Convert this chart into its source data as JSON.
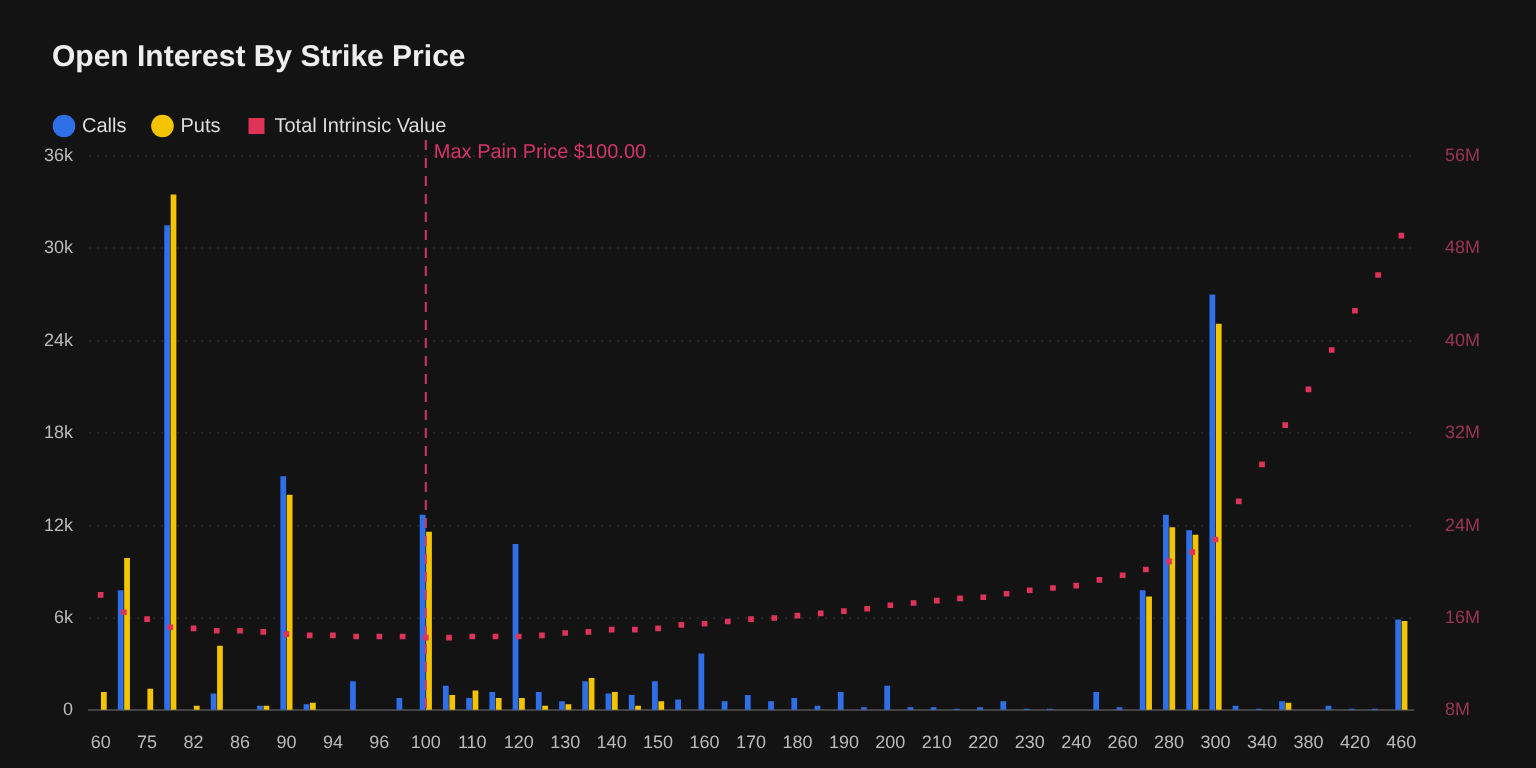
{
  "chart_data": {
    "type": "bar",
    "title": "Open Interest By Strike Price",
    "categories": [
      "60",
      null,
      "75",
      null,
      "82",
      null,
      "86",
      null,
      "90",
      null,
      "94",
      null,
      "96",
      null,
      "100",
      null,
      "110",
      null,
      "120",
      null,
      "130",
      null,
      "140",
      null,
      "150",
      null,
      "160",
      null,
      "170",
      null,
      "180",
      null,
      "190",
      null,
      "200",
      null,
      "210",
      null,
      "220",
      null,
      "230",
      null,
      "240",
      null,
      "260",
      null,
      "280",
      null,
      "300",
      null,
      "340",
      null,
      "380",
      null,
      "420",
      null,
      "460"
    ],
    "series": [
      {
        "name": "Calls",
        "color": "#2f6fe8",
        "values": [
          0,
          7800,
          0,
          31500,
          0,
          1100,
          0,
          300,
          15200,
          400,
          0,
          1900,
          0,
          800,
          12700,
          1600,
          800,
          1200,
          10800,
          1200,
          600,
          1900,
          1100,
          1000,
          1900,
          700,
          3700,
          600,
          1000,
          600,
          800,
          300,
          1200,
          200,
          1600,
          200,
          200,
          100,
          200,
          600,
          100,
          100,
          0,
          1200,
          200,
          7800,
          12700,
          11700,
          27000,
          300,
          100,
          600,
          0,
          300,
          100,
          100,
          5900
        ]
      },
      {
        "name": "Puts",
        "color": "#f5c400",
        "values": [
          1200,
          9900,
          1400,
          33500,
          300,
          4200,
          0,
          300,
          14000,
          500,
          0,
          0,
          0,
          0,
          11600,
          1000,
          1300,
          800,
          800,
          300,
          400,
          2100,
          1200,
          300,
          600,
          0,
          0,
          0,
          0,
          0,
          0,
          0,
          0,
          0,
          0,
          0,
          0,
          0,
          0,
          0,
          0,
          0,
          0,
          0,
          0,
          7400,
          11900,
          11400,
          25100,
          0,
          0,
          500,
          0,
          0,
          0,
          0,
          5800
        ]
      },
      {
        "name": "Total Intrinsic Value",
        "type": "scatter",
        "axis": "y2",
        "marker": "square",
        "color": "#e0335a",
        "values": [
          18000000,
          16500000,
          15900000,
          15200000,
          15100000,
          14900000,
          14900000,
          14800000,
          14600000,
          14500000,
          14500000,
          14400000,
          14400000,
          14400000,
          14300000,
          14300000,
          14400000,
          14400000,
          14400000,
          14500000,
          14700000,
          14800000,
          15000000,
          15000000,
          15100000,
          15400000,
          15500000,
          15700000,
          15900000,
          16000000,
          16200000,
          16400000,
          16600000,
          16800000,
          17100000,
          17300000,
          17500000,
          17700000,
          17800000,
          18100000,
          18400000,
          18600000,
          18800000,
          19300000,
          19700000,
          20200000,
          20900000,
          21700000,
          22800000,
          26100000,
          29300000,
          32700000,
          35800000,
          39200000,
          42600000,
          45700000,
          49100000
        ]
      }
    ],
    "ylim": [
      0,
      36000
    ],
    "yticks": [
      0,
      {
        "value": 6000,
        "label": "6k"
      },
      {
        "value": 12000,
        "label": "12k"
      },
      {
        "value": 18000,
        "label": "18k"
      },
      {
        "value": 24000,
        "label": "24k"
      },
      {
        "value": 30000,
        "label": "30k"
      },
      {
        "value": 36000,
        "label": "36k"
      }
    ],
    "y2lim": [
      8000000,
      56000000
    ],
    "y2ticks": [
      {
        "value": 8000000,
        "label": "8M"
      },
      {
        "value": 16000000,
        "label": "16M"
      },
      {
        "value": 24000000,
        "label": "24M"
      },
      {
        "value": 32000000,
        "label": "32M"
      },
      {
        "value": 40000000,
        "label": "40M"
      },
      {
        "value": 48000000,
        "label": "48M"
      },
      {
        "value": 56000000,
        "label": "56M"
      }
    ],
    "ref_lines": [
      {
        "axis": "x",
        "value": "100",
        "label": "Max Pain Price $100.00",
        "color": "#d6336c",
        "line_style": "dashed"
      }
    ],
    "grid": "y",
    "legend": "top left"
  }
}
